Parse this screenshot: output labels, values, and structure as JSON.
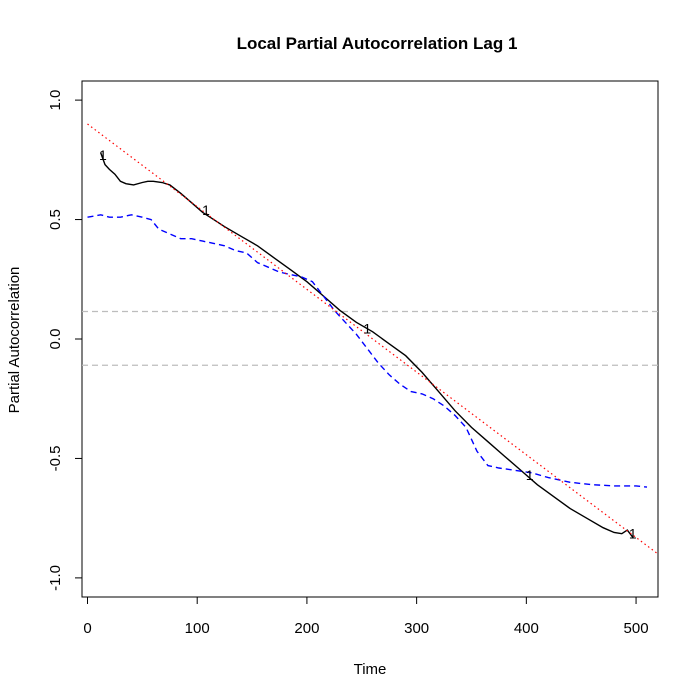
{
  "chart_data": {
    "type": "line",
    "title": "Local Partial Autocorrelation Lag  1",
    "xlabel": "Time",
    "ylabel": "Partial Autocorrelation",
    "xlim": [
      -5,
      520
    ],
    "ylim": [
      -1.08,
      1.08
    ],
    "x_ticks": [
      0,
      100,
      200,
      300,
      400,
      500
    ],
    "y_ticks": [
      -1.0,
      -0.5,
      0.0,
      0.5,
      1.0
    ],
    "x_tick_labels": [
      "0",
      "100",
      "200",
      "300",
      "400",
      "500"
    ],
    "y_tick_labels": [
      "-1.0",
      "-0.5",
      "0.0",
      "0.5",
      "1.0"
    ],
    "grid": false,
    "confidence_bounds": {
      "values": [
        0.115,
        -0.11
      ],
      "color": "#bdbdbd",
      "style": "dashed"
    },
    "series": [
      {
        "color": "#000000",
        "style": "solid",
        "x": [
          12,
          16,
          20,
          25,
          30,
          35,
          42,
          50,
          55,
          60,
          68,
          75,
          85,
          95,
          105,
          115,
          125,
          140,
          155,
          170,
          185,
          200,
          215,
          230,
          245,
          260,
          275,
          290,
          305,
          320,
          335,
          350,
          365,
          380,
          395,
          410,
          425,
          440,
          455,
          470,
          480,
          487,
          492,
          497
        ],
        "y": [
          0.78,
          0.73,
          0.71,
          0.69,
          0.66,
          0.65,
          0.645,
          0.655,
          0.66,
          0.66,
          0.655,
          0.645,
          0.61,
          0.57,
          0.53,
          0.5,
          0.47,
          0.43,
          0.39,
          0.34,
          0.29,
          0.24,
          0.18,
          0.12,
          0.07,
          0.03,
          -0.02,
          -0.07,
          -0.14,
          -0.22,
          -0.3,
          -0.37,
          -0.43,
          -0.49,
          -0.55,
          -0.61,
          -0.66,
          -0.71,
          -0.75,
          -0.79,
          -0.81,
          -0.815,
          -0.8,
          -0.83
        ]
      },
      {
        "color": "#0000ff",
        "style": "dashed",
        "x": [
          0,
          12,
          20,
          30,
          40,
          50,
          58,
          65,
          75,
          85,
          95,
          105,
          115,
          125,
          135,
          145,
          155,
          165,
          175,
          185,
          195,
          205,
          215,
          225,
          235,
          245,
          255,
          265,
          275,
          285,
          295,
          305,
          315,
          325,
          335,
          345,
          355,
          365,
          375,
          390,
          405,
          420,
          440,
          460,
          480,
          500,
          510
        ],
        "y": [
          0.51,
          0.52,
          0.51,
          0.51,
          0.52,
          0.51,
          0.5,
          0.46,
          0.44,
          0.42,
          0.42,
          0.41,
          0.4,
          0.39,
          0.37,
          0.36,
          0.32,
          0.3,
          0.28,
          0.27,
          0.26,
          0.24,
          0.18,
          0.12,
          0.07,
          0.02,
          -0.04,
          -0.1,
          -0.15,
          -0.19,
          -0.22,
          -0.23,
          -0.25,
          -0.28,
          -0.32,
          -0.37,
          -0.47,
          -0.53,
          -0.54,
          -0.55,
          -0.56,
          -0.58,
          -0.6,
          -0.61,
          -0.615,
          -0.615,
          -0.62
        ]
      },
      {
        "color": "#ff0000",
        "style": "dotted",
        "x": [
          0,
          520
        ],
        "y": [
          0.9,
          -0.9
        ]
      }
    ],
    "markers": [
      {
        "x": 14,
        "y": 0.77,
        "label": "1"
      },
      {
        "x": 108,
        "y": 0.54,
        "label": "1"
      },
      {
        "x": 255,
        "y": 0.045,
        "label": "1"
      },
      {
        "x": 403,
        "y": -0.57,
        "label": "1"
      },
      {
        "x": 497,
        "y": -0.815,
        "label": "1"
      }
    ]
  }
}
